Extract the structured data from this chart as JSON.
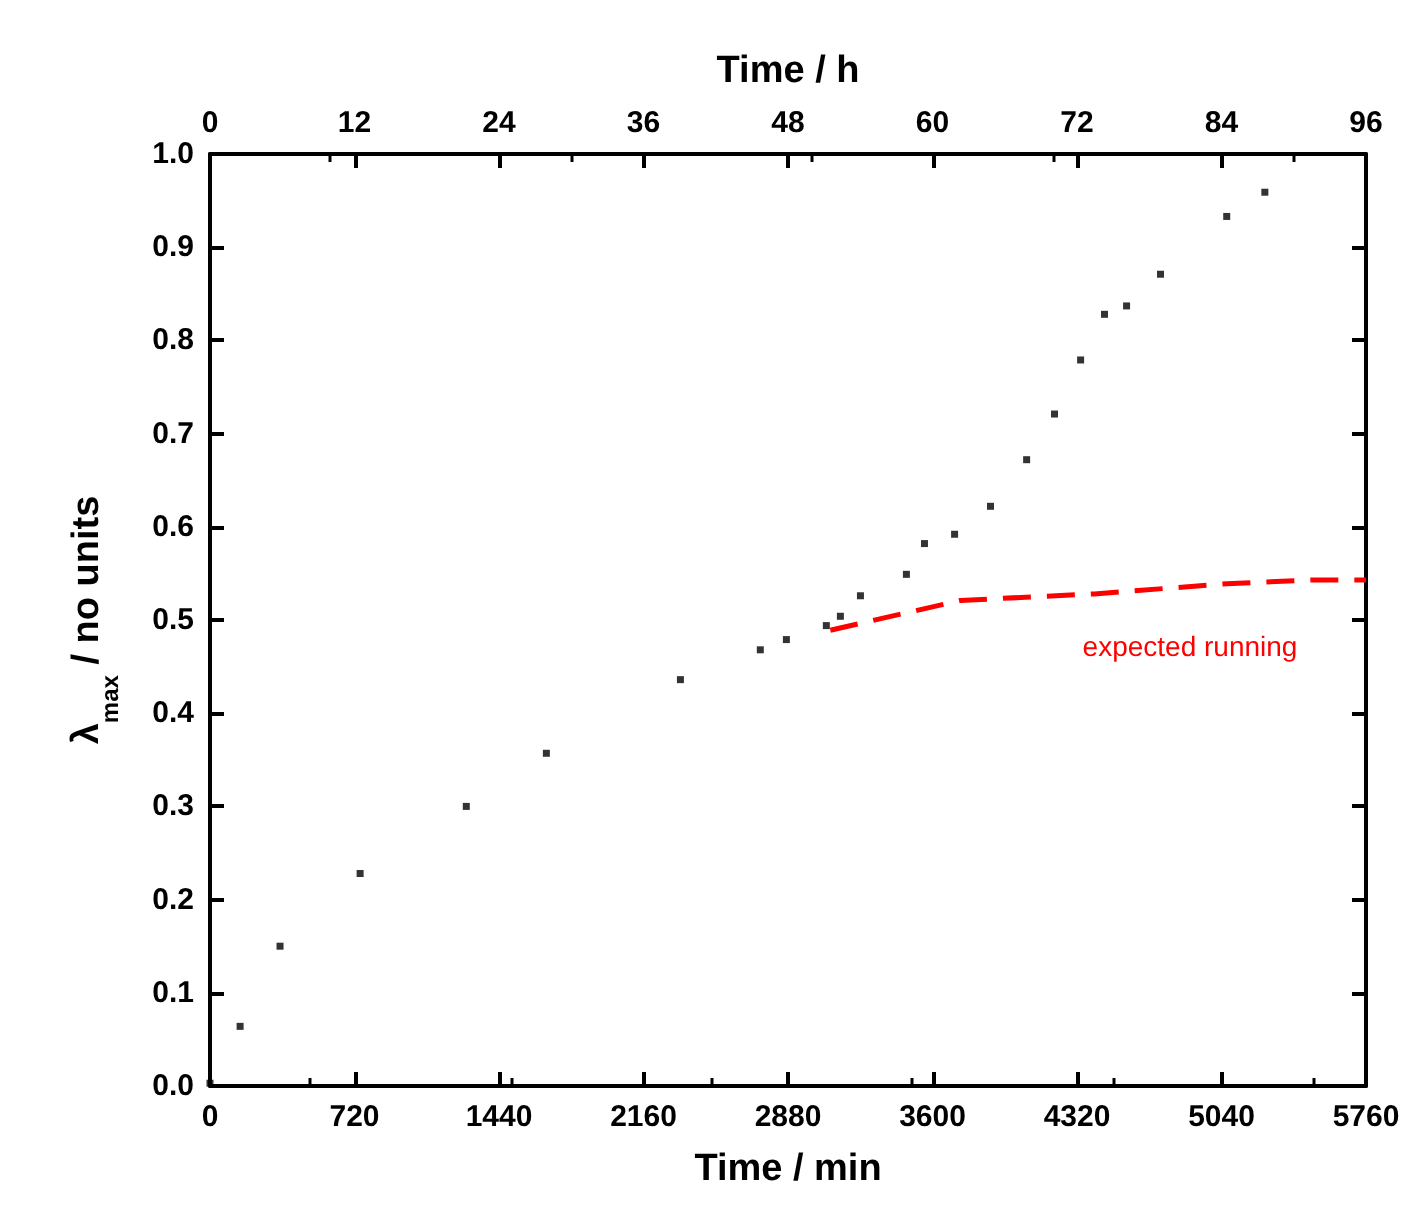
{
  "chart_data": {
    "type": "scatter",
    "xlabel": "Time / min",
    "ylabel": "λ$_{max}$ / no units",
    "x2label": "Time / h",
    "xlim": [
      0,
      5760
    ],
    "xticks": [
      0,
      720,
      1440,
      2160,
      2880,
      3600,
      4320,
      5040,
      5760
    ],
    "x2lim": [
      0,
      96
    ],
    "x2ticks": [
      0,
      12,
      24,
      36,
      48,
      60,
      72,
      84,
      96
    ],
    "ylim": [
      0,
      1
    ],
    "yticks": [
      {
        "value": 0,
        "label": "0.0"
      },
      0.1,
      0.2,
      0.3,
      0.4,
      0.5,
      0.6,
      0.7,
      0.8,
      0.9,
      {
        "value": 1,
        "label": "1.0"
      }
    ],
    "marker": "square",
    "grid": false,
    "series": [
      {
        "color": "#000000",
        "x": [
          0,
          150,
          349,
          748,
          1277,
          1676,
          2344,
          2742,
          2872,
          3071,
          3141,
          3241,
          3470,
          3560,
          3710,
          3889,
          4069,
          4208,
          4338,
          4457,
          4567,
          4736,
          5066,
          5256
        ],
        "values": [
          0.003,
          0.064,
          0.15,
          0.228,
          0.3,
          0.357,
          0.436,
          0.468,
          0.479,
          0.494,
          0.504,
          0.526,
          0.549,
          0.582,
          0.592,
          0.622,
          0.672,
          0.721,
          0.779,
          0.828,
          0.837,
          0.871,
          0.933,
          0.959
        ]
      },
      {
        "type": "line",
        "color": "#ff0000",
        "line_style": "dashed",
        "marker": "none",
        "x": [
          3091,
          3739,
          4407,
          5066,
          5505,
          5760
        ],
        "values": [
          0.489,
          0.521,
          0.528,
          0.539,
          0.543,
          0.543
        ]
      }
    ],
    "annotations": [
      "expected running"
    ]
  }
}
